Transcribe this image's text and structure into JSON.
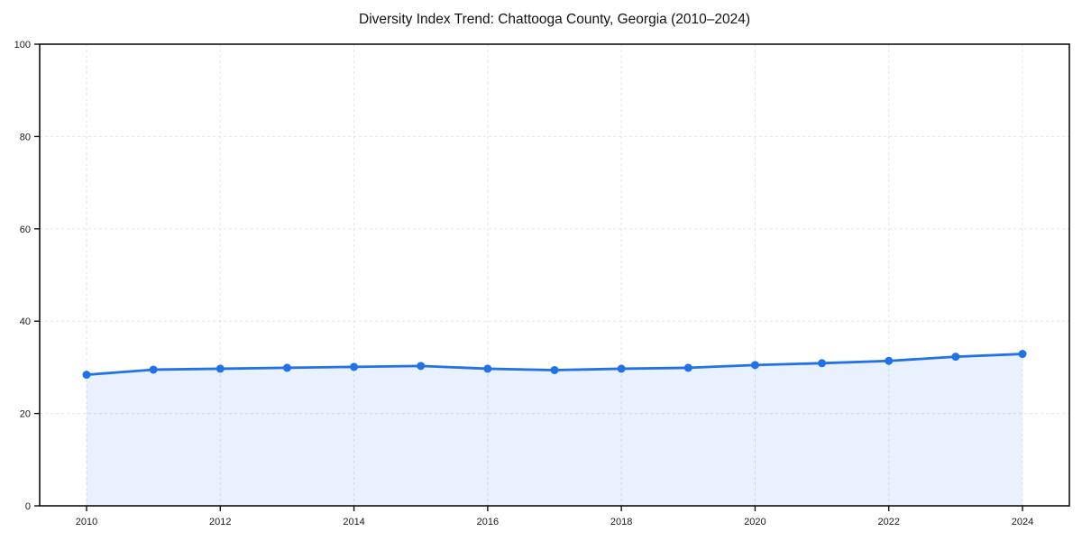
{
  "page": {
    "background": "#ffffff"
  },
  "chart_data": {
    "type": "area",
    "title": "Diversity Index Trend: Chattooga County, Georgia (2010–2024)",
    "x": [
      2010,
      2011,
      2012,
      2013,
      2014,
      2015,
      2016,
      2017,
      2018,
      2019,
      2020,
      2021,
      2022,
      2023,
      2024
    ],
    "series": [
      {
        "name": "Diversity Index",
        "values": [
          28.4,
          29.5,
          29.7,
          29.9,
          30.1,
          30.3,
          29.7,
          29.4,
          29.7,
          29.9,
          30.5,
          30.9,
          31.4,
          32.3,
          32.9
        ]
      }
    ],
    "xlabel": "",
    "ylabel": "",
    "ylim": [
      0,
      100
    ],
    "yticks": [
      0,
      20,
      40,
      60,
      80,
      100
    ],
    "xticks": [
      2010,
      2012,
      2014,
      2016,
      2018,
      2020,
      2022,
      2024
    ],
    "grid": true,
    "grid_style": "dashed",
    "legend": "none",
    "line_color": "#2172e8",
    "fill_color": "rgba(33, 114, 232, 0.10)",
    "grid_color": "#e4e4e4",
    "axis_color": "#111111",
    "text_color": "#1a1a1a",
    "marker_radius": 4.5,
    "line_width": 2.8
  }
}
